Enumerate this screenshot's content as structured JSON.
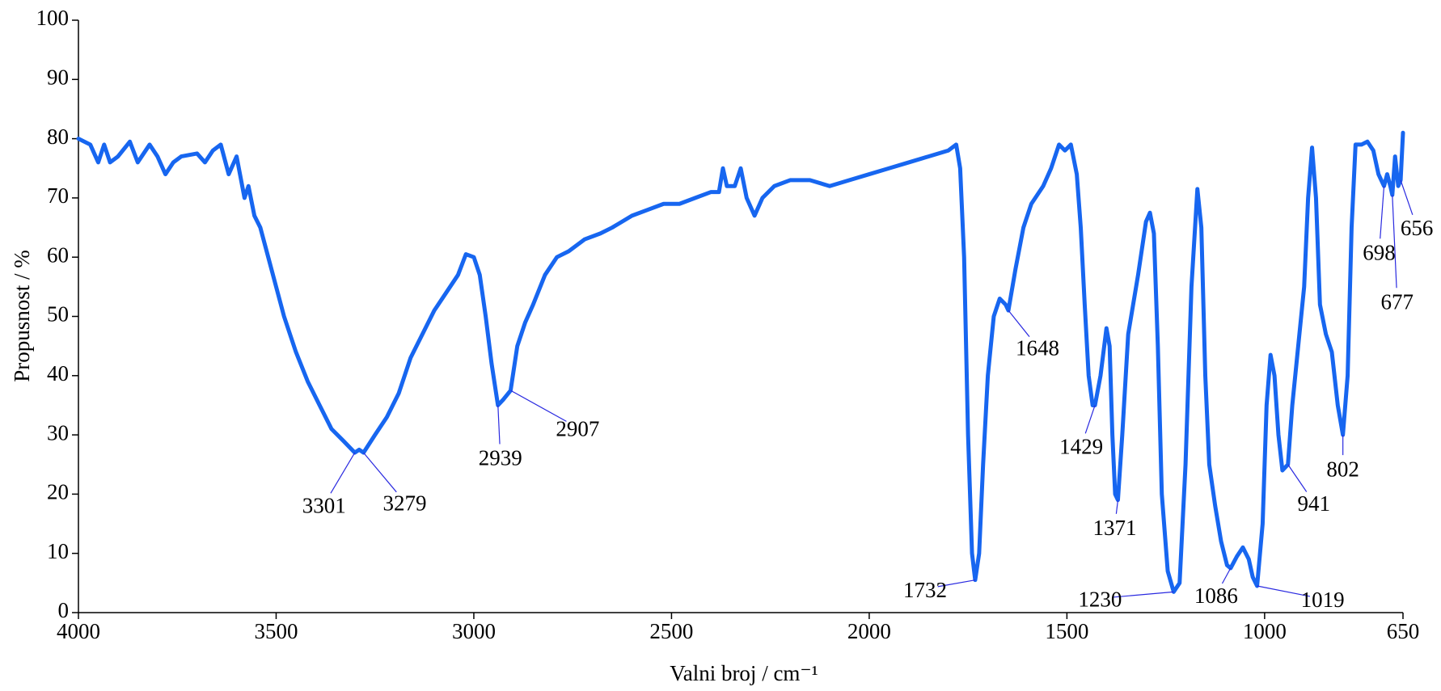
{
  "chart_data": {
    "type": "line",
    "x_label": "Valni broj / cm⁻¹",
    "y_label": "Propusnost / %",
    "xlim": [
      4000,
      650
    ],
    "ylim": [
      0,
      100
    ],
    "xticks": [
      4000,
      3500,
      3000,
      2500,
      2000,
      1500,
      1000,
      650
    ],
    "yticks": [
      0,
      10,
      20,
      30,
      40,
      50,
      60,
      70,
      80,
      90,
      100
    ],
    "grid": false,
    "series": [
      {
        "color": "#1766f0",
        "x": [
          4000,
          3970,
          3950,
          3935,
          3920,
          3900,
          3870,
          3850,
          3820,
          3800,
          3780,
          3760,
          3740,
          3700,
          3680,
          3660,
          3640,
          3620,
          3600,
          3580,
          3570,
          3555,
          3540,
          3520,
          3500,
          3480,
          3450,
          3420,
          3390,
          3360,
          3330,
          3301,
          3290,
          3279,
          3250,
          3220,
          3190,
          3160,
          3130,
          3100,
          3070,
          3040,
          3020,
          3000,
          2985,
          2970,
          2955,
          2939,
          2925,
          2907,
          2890,
          2870,
          2850,
          2820,
          2790,
          2760,
          2720,
          2680,
          2650,
          2600,
          2560,
          2520,
          2480,
          2440,
          2400,
          2380,
          2370,
          2360,
          2340,
          2325,
          2310,
          2290,
          2270,
          2240,
          2200,
          2150,
          2100,
          2050,
          2000,
          1950,
          1900,
          1850,
          1800,
          1780,
          1770,
          1760,
          1750,
          1740,
          1732,
          1722,
          1712,
          1700,
          1685,
          1670,
          1655,
          1648,
          1630,
          1610,
          1590,
          1560,
          1540,
          1520,
          1505,
          1490,
          1475,
          1465,
          1455,
          1445,
          1435,
          1429,
          1415,
          1400,
          1392,
          1385,
          1378,
          1371,
          1360,
          1345,
          1320,
          1300,
          1290,
          1280,
          1270,
          1260,
          1245,
          1230,
          1215,
          1200,
          1185,
          1170,
          1160,
          1150,
          1140,
          1125,
          1110,
          1095,
          1086,
          1070,
          1055,
          1040,
          1030,
          1019,
          1005,
          995,
          985,
          975,
          965,
          955,
          941,
          930,
          915,
          900,
          890,
          880,
          870,
          860,
          845,
          830,
          815,
          802,
          790,
          780,
          770,
          755,
          740,
          725,
          712,
          698,
          690,
          682,
          677,
          670,
          662,
          656,
          650
        ],
        "values": [
          80,
          79,
          76,
          79,
          76,
          77,
          79.5,
          76,
          79,
          77,
          74,
          76,
          77,
          77.5,
          76,
          78,
          79,
          74,
          77,
          70,
          72,
          67,
          65,
          60,
          55,
          50,
          44,
          39,
          35,
          31,
          29,
          27,
          27.5,
          27,
          30,
          33,
          37,
          43,
          47,
          51,
          54,
          57,
          60.5,
          60,
          57,
          50,
          42,
          35,
          36,
          37.5,
          45,
          49,
          52,
          57,
          60,
          61,
          63,
          64,
          65,
          67,
          68,
          69,
          69,
          70,
          71,
          71,
          75,
          72,
          72,
          75,
          70,
          67,
          70,
          72,
          73,
          73,
          72,
          73,
          74,
          75,
          76,
          77,
          78,
          79,
          75,
          60,
          30,
          10,
          5.5,
          10,
          25,
          40,
          50,
          53,
          52,
          51,
          58,
          65,
          69,
          72,
          75,
          79,
          78,
          79,
          74,
          65,
          52,
          40,
          35,
          35,
          40,
          48,
          45,
          30,
          20,
          19,
          30,
          47,
          57,
          66,
          67.5,
          64,
          45,
          20,
          7,
          3.5,
          5,
          25,
          55,
          71.5,
          65,
          40,
          25,
          18,
          12,
          8,
          7.5,
          9.5,
          11,
          9,
          6,
          4.5,
          15,
          35,
          43.5,
          40,
          30,
          24,
          25,
          35,
          45,
          55,
          70,
          78.5,
          70,
          52,
          47,
          44,
          35,
          30,
          40,
          65,
          79,
          79,
          79.5,
          78,
          74,
          72,
          74,
          72,
          70.5,
          77,
          72,
          73,
          81
        ]
      }
    ],
    "annotations": [
      {
        "text": "3301",
        "x": 3301,
        "y": 27
      },
      {
        "text": "3279",
        "x": 3279,
        "y": 27
      },
      {
        "text": "2939",
        "x": 2939,
        "y": 35
      },
      {
        "text": "2907",
        "x": 2907,
        "y": 37.5
      },
      {
        "text": "1732",
        "x": 1732,
        "y": 5.5
      },
      {
        "text": "1648",
        "x": 1648,
        "y": 51
      },
      {
        "text": "1429",
        "x": 1429,
        "y": 35
      },
      {
        "text": "1371",
        "x": 1371,
        "y": 19
      },
      {
        "text": "1230",
        "x": 1230,
        "y": 3.5
      },
      {
        "text": "1086",
        "x": 1086,
        "y": 7.5
      },
      {
        "text": "1019",
        "x": 1019,
        "y": 4.5
      },
      {
        "text": "941",
        "x": 941,
        "y": 25
      },
      {
        "text": "802",
        "x": 802,
        "y": 30
      },
      {
        "text": "698",
        "x": 698,
        "y": 72
      },
      {
        "text": "677",
        "x": 677,
        "y": 70.5
      },
      {
        "text": "656",
        "x": 656,
        "y": 73
      }
    ]
  }
}
